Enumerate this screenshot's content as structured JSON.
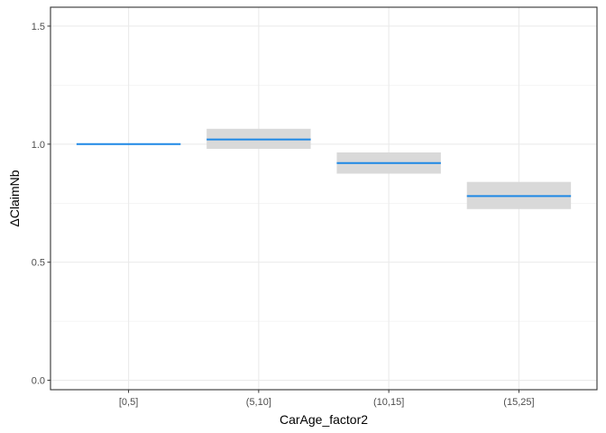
{
  "chart_data": {
    "type": "crossbar",
    "xlabel": "CarAge_factor2",
    "ylabel": "ΔClaimNb",
    "categories": [
      "[0,5]",
      "(5,10]",
      "(10,15]",
      "(15,25]"
    ],
    "estimate": [
      1.0,
      1.02,
      0.92,
      0.78
    ],
    "lower": [
      1.0,
      0.98,
      0.875,
      0.725
    ],
    "upper": [
      1.0,
      1.065,
      0.965,
      0.84
    ],
    "ylim": [
      -0.04,
      1.58
    ],
    "yticks": [
      0.0,
      0.5,
      1.0,
      1.5
    ],
    "ytick_labels": [
      "0.0",
      "0.5",
      "1.0",
      "1.5"
    ],
    "grid": true,
    "colors": {
      "line": "#1e88e5",
      "band": "#d9d9d9",
      "grid": "#ebebeb",
      "border": "#333333"
    }
  }
}
